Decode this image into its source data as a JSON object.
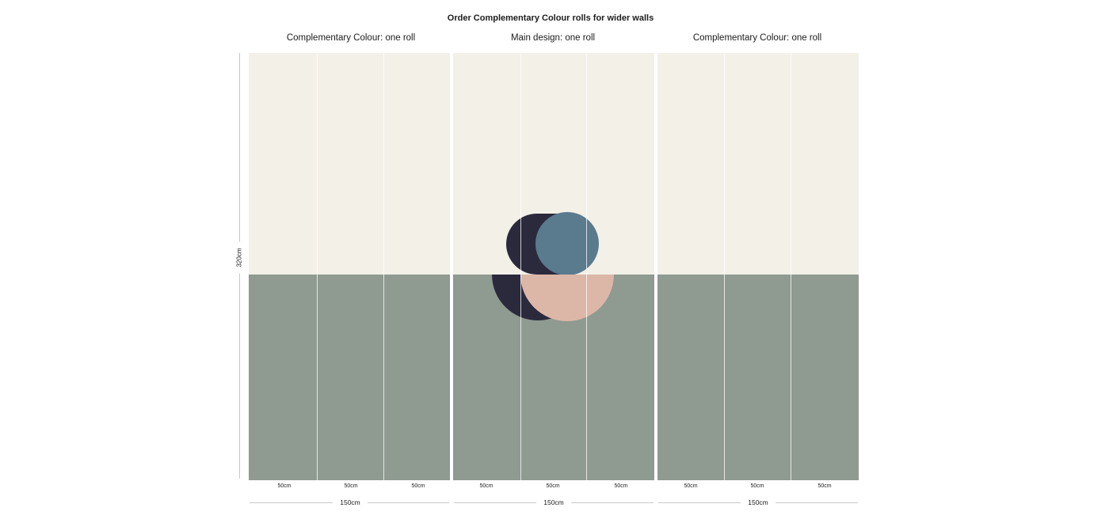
{
  "title": "Order Complementary Colour rolls for wider walls",
  "panels": [
    {
      "label": "Complementary Colour: one roll",
      "type": "complementary"
    },
    {
      "label": "Main design: one roll",
      "type": "main"
    },
    {
      "label": "Complementary Colour: one roll",
      "type": "complementary"
    }
  ],
  "height_label": "320cm",
  "strip_labels": [
    "50cm",
    "50cm",
    "50cm",
    "50cm",
    "50cm",
    "50cm",
    "50cm",
    "50cm",
    "50cm"
  ],
  "width_labels": [
    "150cm",
    "150cm",
    "150cm"
  ],
  "colors": {
    "cream": "#f3f0e8",
    "sage_green": "#8f9a90",
    "navy": "#2b2a3d",
    "slate_blue": "#5a7a8e",
    "blush_pink": "#dcb7a8"
  }
}
